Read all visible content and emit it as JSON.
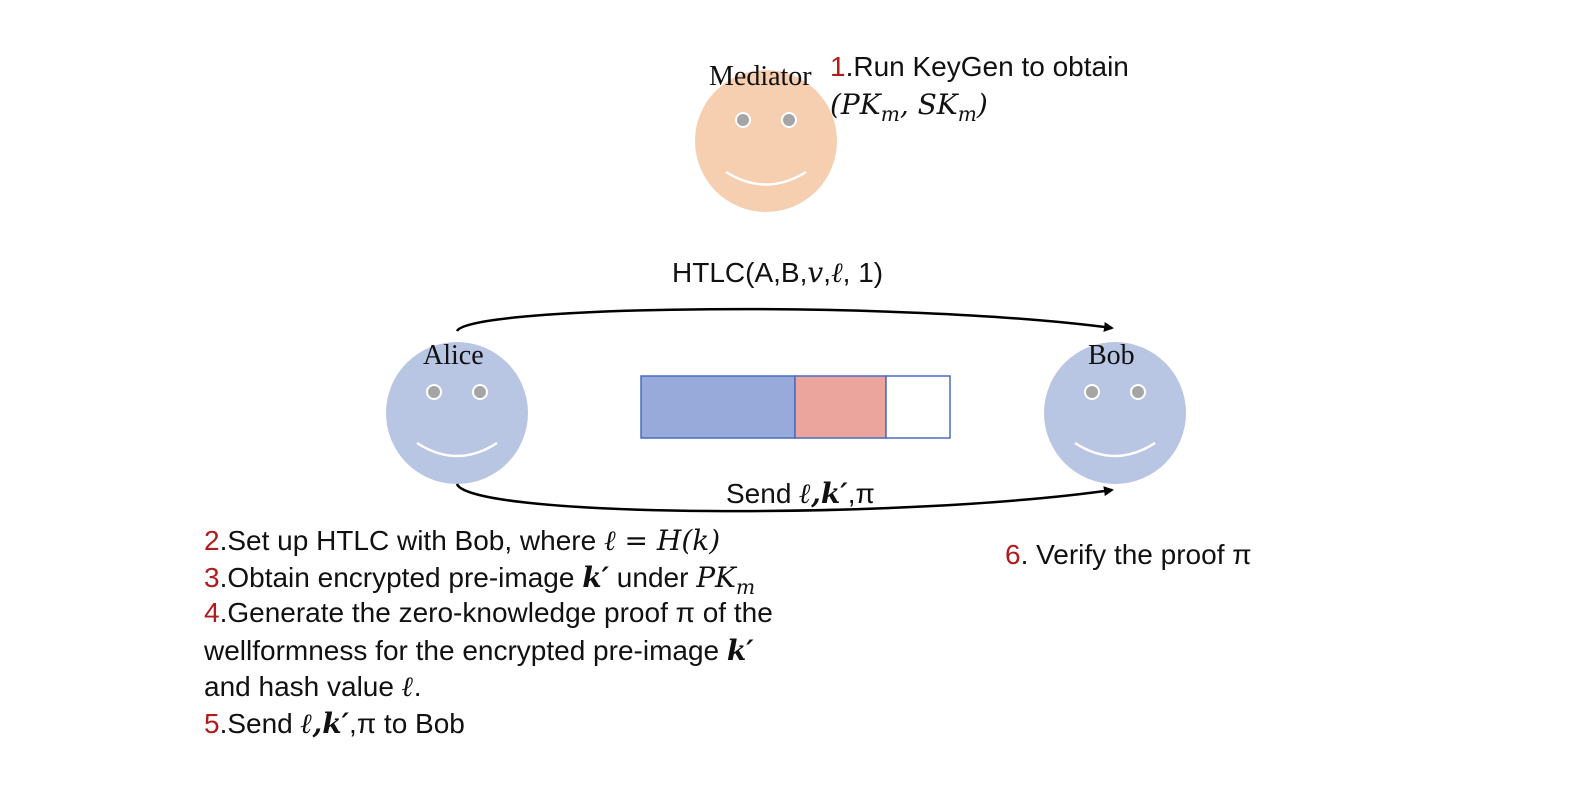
{
  "colors": {
    "mediator_face": "#f6cfb0",
    "party_face": "#b8c6e4",
    "eye_fill": "#a5a5a5",
    "step_number": "#b01c1c",
    "bar_blue": "#98aada",
    "bar_red": "#eba59d",
    "bar_border": "#4a6cc0"
  },
  "actors": {
    "mediator": "Mediator",
    "alice": "Alice",
    "bob": "Bob"
  },
  "arrows": {
    "top_label": {
      "pre": "HTLC(A,B,",
      "v": "v",
      "sep": ",",
      "l": "ℓ",
      "post": ", 1)"
    },
    "bottom_label": {
      "pre": "Send ",
      "l": "ℓ",
      "comma": ",",
      "k": "k′",
      "post": ",π"
    }
  },
  "steps": {
    "s1": {
      "num": "1",
      "text": ".Run KeyGen to obtain",
      "keys": "(PK",
      "m1": "m",
      "mid": ", SK",
      "m2": "m",
      "close": ")"
    },
    "s2": {
      "num": "2",
      "text": ".Set up HTLC with Bob, where ",
      "math": "ℓ = H(k)"
    },
    "s3": {
      "num": "3",
      "text": ".Obtain encrypted pre-image ",
      "k": "k′",
      "mid": " under ",
      "pk": "PK",
      "m": "m"
    },
    "s4": {
      "num": "4",
      "text": ".Generate the zero-knowledge proof π of the",
      "line2": "wellformness for the encrypted pre-image ",
      "k": "k′",
      "line3": "and hash value ",
      "l": "ℓ",
      "end": "."
    },
    "s5": {
      "num": "5",
      "text": ".Send ",
      "l": "ℓ",
      "comma": ",",
      "k": "k′",
      "post": ",π to Bob"
    },
    "s6": {
      "num": "6",
      "text": ". Verify the proof π"
    }
  }
}
